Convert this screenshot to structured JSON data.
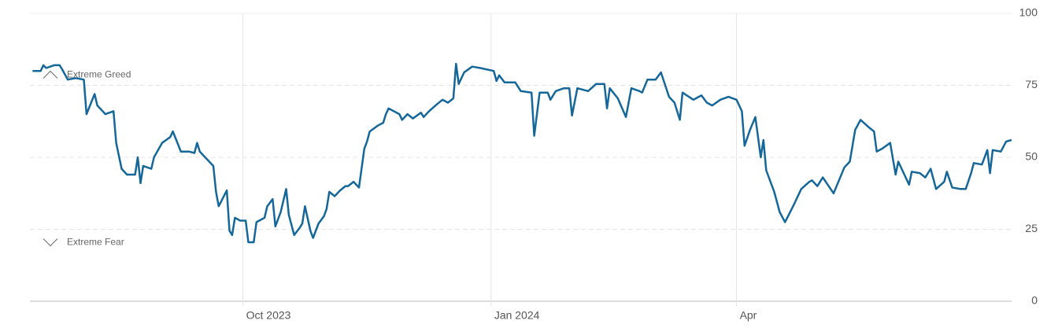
{
  "chart_data": {
    "type": "line",
    "x": [
      1,
      4,
      5,
      6,
      9,
      11,
      12,
      14,
      17,
      20,
      21,
      24,
      25,
      28,
      31,
      32,
      34,
      36,
      39,
      40,
      41,
      42,
      45,
      46,
      49,
      52,
      53,
      56,
      59,
      61,
      62,
      63,
      66,
      68,
      69,
      70,
      73,
      74,
      75,
      76,
      78,
      80,
      81,
      83,
      84,
      87,
      88,
      90,
      91,
      93,
      95,
      96,
      98,
      100,
      101,
      102,
      104,
      105,
      107,
      109,
      110,
      111,
      113,
      115,
      117,
      118,
      120,
      122,
      124,
      125,
      126,
      129,
      131,
      132,
      133,
      137,
      138,
      140,
      142,
      145,
      146,
      148,
      151,
      153,
      155,
      157,
      158,
      159,
      161,
      164,
      167,
      172,
      173,
      174,
      176,
      180,
      182,
      186,
      187,
      189,
      192,
      193,
      195,
      198,
      200,
      201,
      203,
      207,
      210,
      213,
      214,
      215,
      218,
      221,
      223,
      226,
      227,
      229,
      232,
      234,
      237,
      239,
      241,
      242,
      246,
      249,
      251,
      253,
      256,
      259,
      262,
      264,
      265,
      267,
      269,
      271,
      272,
      273,
      276,
      278,
      280,
      283,
      286,
      289,
      290,
      292,
      294,
      298,
      302,
      304,
      306,
      308,
      311,
      313,
      314,
      316,
      319,
      321,
      322,
      326,
      327,
      330,
      332,
      334,
      336,
      339,
      340,
      342,
      345,
      347,
      349,
      350,
      353,
      355,
      356,
      357,
      360,
      362,
      364
    ],
    "series": [
      {
        "color": "#15679a",
        "values": [
          80,
          80,
          82,
          81,
          82,
          82,
          80.5,
          77,
          77.5,
          77,
          65,
          72,
          68,
          65,
          66,
          55,
          46,
          44,
          44,
          50,
          41,
          47,
          46,
          50,
          55,
          57,
          59,
          52,
          52,
          51.5,
          55,
          52,
          49,
          47,
          38,
          33,
          38.5,
          24.5,
          23,
          29,
          28,
          28,
          20.5,
          20.5,
          27.5,
          29,
          33,
          35.5,
          26,
          31,
          39,
          30,
          23,
          25.5,
          27,
          33,
          24.5,
          22,
          27,
          29.5,
          32,
          38,
          36.5,
          38.5,
          40,
          40,
          41.5,
          39.5,
          53,
          55.5,
          59,
          61,
          62,
          65,
          67,
          65,
          63,
          65,
          63.5,
          65.5,
          64,
          66,
          68.5,
          70,
          69,
          70.5,
          82.5,
          75.5,
          79.5,
          81.5,
          81,
          80,
          76.5,
          78.5,
          76,
          76,
          73,
          72.5,
          57.5,
          72.5,
          72.5,
          70,
          73,
          74,
          74,
          64.5,
          74,
          73,
          75.5,
          75.5,
          67,
          74,
          70.5,
          64,
          74,
          73,
          72.5,
          77,
          77,
          79.5,
          71,
          69,
          63,
          72.5,
          70,
          71.5,
          69,
          68,
          70,
          71,
          70,
          66,
          54,
          59.5,
          64,
          50,
          56,
          45.5,
          38,
          31,
          27.5,
          33,
          39,
          41.5,
          42,
          40,
          43,
          37.5,
          46.5,
          48.5,
          59.5,
          63,
          60.5,
          59,
          52,
          53,
          55,
          44,
          48.5,
          40.5,
          45,
          44.5,
          43,
          46,
          39,
          41.5,
          45,
          39.5,
          39,
          39,
          44.5,
          48,
          47.5,
          52.5,
          44.5,
          52.5,
          52,
          55.5,
          56
        ]
      }
    ],
    "xlim": [
      0,
      364
    ],
    "xticks": [
      {
        "value": 79,
        "label": "Oct 2023"
      },
      {
        "value": 171,
        "label": "Jan 2024"
      },
      {
        "value": 262,
        "label": "Apr"
      }
    ],
    "ylim": [
      0,
      100
    ],
    "yticks": [
      0,
      25,
      50,
      75,
      100
    ],
    "grid": true,
    "annotations": [
      {
        "text": "Extreme Greed",
        "value": 75,
        "direction": "up"
      },
      {
        "text": "Extreme Fear",
        "value": 25,
        "direction": "down"
      }
    ]
  }
}
